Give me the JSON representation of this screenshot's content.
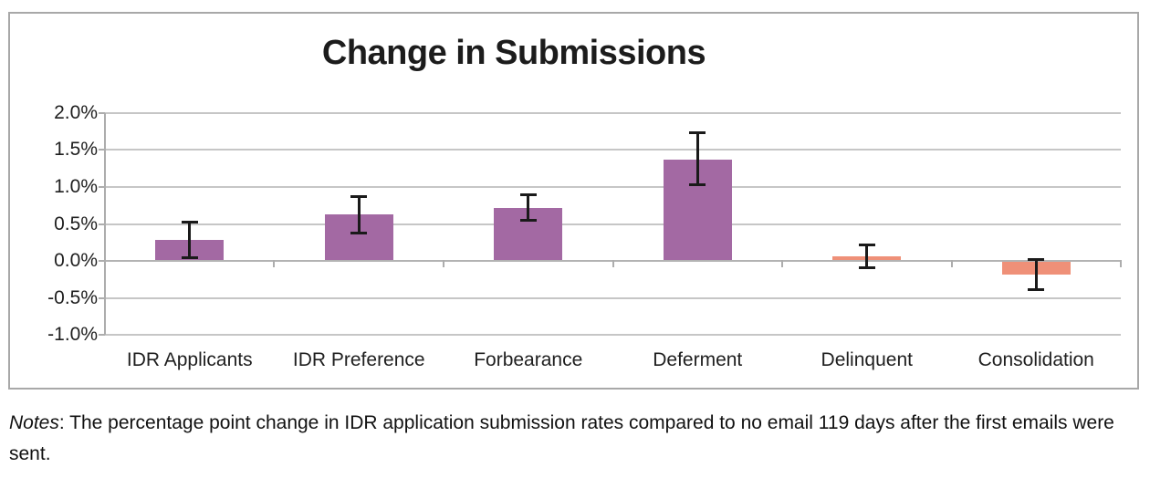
{
  "title": "Change in Submissions",
  "notes": {
    "prefix": "Notes",
    "body": ": The percentage point change in IDR application submission rates compared to no email 119 days after the first emails were sent."
  },
  "chart_data": {
    "type": "bar",
    "title": "Change in Submissions",
    "categories": [
      "IDR Applicants",
      "IDR Preference",
      "Forbearance",
      "Deferment",
      "Delinquent",
      "Consolidation"
    ],
    "values": [
      0.29,
      0.63,
      0.71,
      1.37,
      0.06,
      -0.19
    ],
    "error_high": [
      0.53,
      0.88,
      0.9,
      1.74,
      0.22,
      0.03
    ],
    "error_low": [
      0.04,
      0.37,
      0.54,
      1.02,
      -0.1,
      -0.39
    ],
    "unit": "percentage points",
    "ylim": [
      -1.0,
      2.0
    ],
    "ytick_step": 0.5,
    "ytick_labels": [
      "2.0%",
      "1.5%",
      "1.0%",
      "0.5%",
      "0.0%",
      "-0.5%",
      "-1.0%"
    ],
    "grid": true,
    "legend_position": "none",
    "xlabel": "",
    "ylabel": "",
    "bar_colors": [
      "#A369A3",
      "#A369A3",
      "#A369A3",
      "#A369A3",
      "#EF9078",
      "#EF9078"
    ]
  },
  "colors": {
    "purple_bar": "#A369A3",
    "orange_bar": "#EF9078",
    "gridline": "#C6C6C6",
    "axis": "#ADADAD",
    "frame_border": "#A8A8A8",
    "error_bar": "#1A1A1A",
    "text": "#1F1F1F"
  }
}
